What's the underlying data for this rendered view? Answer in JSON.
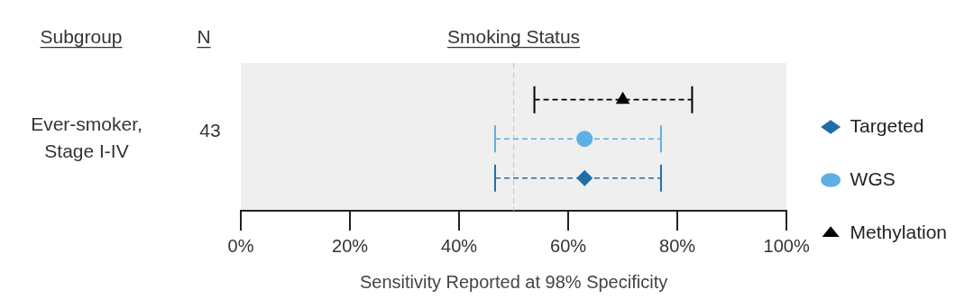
{
  "chart_data": {
    "type": "scatter",
    "orientation": "horizontal",
    "title": "Smoking Status",
    "xlabel": "Sensitivity Reported at 98% Specificity",
    "categories": [
      "Ever-smoker,\nStage I-IV"
    ],
    "annotations": [
      "Subgroup",
      "N",
      "43"
    ],
    "series": [
      {
        "name": "Targeted",
        "color": "#1f6ea8",
        "marker": "diamond",
        "values": [
          63
        ],
        "errors": [
          [
            46.6,
            77
          ]
        ]
      },
      {
        "name": "WGS",
        "color": "#5eb0e3",
        "marker": "circle",
        "values": [
          63
        ],
        "errors": [
          [
            46.6,
            77
          ]
        ]
      },
      {
        "name": "Methylation",
        "color": "#000000",
        "marker": "triangle",
        "values": [
          70
        ],
        "errors": [
          [
            53.8,
            82.7
          ]
        ]
      }
    ],
    "xlim": [
      0,
      100
    ],
    "xticks": [
      {
        "value": 0,
        "label": "0%"
      },
      {
        "value": 20,
        "label": "20%"
      },
      {
        "value": 40,
        "label": "40%"
      },
      {
        "value": 60,
        "label": "60%"
      },
      {
        "value": 80,
        "label": "80%"
      },
      {
        "value": 100,
        "label": "100%"
      }
    ],
    "ref_lines": [
      {
        "axis": "x",
        "value": 50,
        "color": "#c9c6e0",
        "line_style": "dashed"
      }
    ],
    "line_style": "dashed",
    "legend": "right",
    "grid": false
  }
}
